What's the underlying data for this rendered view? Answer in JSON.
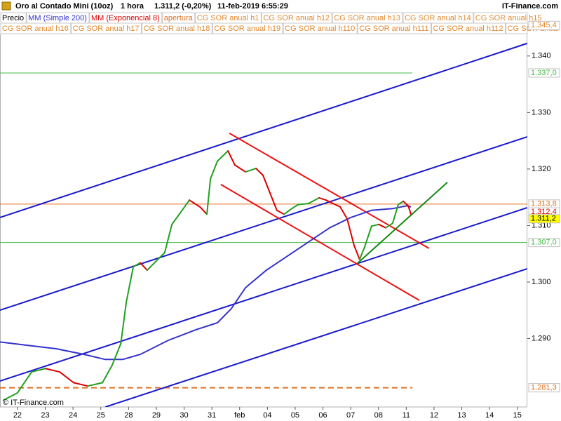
{
  "header": {
    "instrument": "Oro al Contado Mini (10oz)",
    "period": "1 hora",
    "last": "1.311,2 (-0,20%)",
    "datetime": "11-feb-2019 6:55:29",
    "brand": "IT-Finance.com",
    "watermark": "© IT-Finance.com"
  },
  "chart_data": {
    "type": "line",
    "xlim": [
      -0.63,
      18.36
    ],
    "ylim": [
      1.2779,
      1.3437
    ],
    "xticks": [
      {
        "value": 0,
        "label": "22"
      },
      {
        "value": 1,
        "label": "23"
      },
      {
        "value": 2,
        "label": "24"
      },
      {
        "value": 3,
        "label": "25"
      },
      {
        "value": 4,
        "label": "28"
      },
      {
        "value": 5,
        "label": "29"
      },
      {
        "value": 6,
        "label": "30"
      },
      {
        "value": 7,
        "label": "31"
      },
      {
        "value": 8,
        "label": "feb"
      },
      {
        "value": 9,
        "label": "04"
      },
      {
        "value": 10,
        "label": "05"
      },
      {
        "value": 11,
        "label": "06"
      },
      {
        "value": 12,
        "label": "07"
      },
      {
        "value": 13,
        "label": "08"
      },
      {
        "value": 14,
        "label": "11"
      },
      {
        "value": 15,
        "label": "12"
      },
      {
        "value": 16,
        "label": "13"
      },
      {
        "value": 17,
        "label": "14"
      },
      {
        "value": 18,
        "label": "15"
      }
    ],
    "yticks": [
      {
        "value": 1.29,
        "label": "1.290"
      },
      {
        "value": 1.3,
        "label": "1.300"
      },
      {
        "value": 1.31,
        "label": "1.310"
      },
      {
        "value": 1.32,
        "label": "1.320"
      },
      {
        "value": 1.33,
        "label": "1.330"
      },
      {
        "value": 1.34,
        "label": "1.340"
      }
    ],
    "legend_pre": [
      {
        "name": "Precio",
        "color": "#000000"
      }
    ],
    "series": [
      {
        "name": "MM (Simple 200)",
        "color": "#3333cc",
        "x": [
          -0.63,
          0.38,
          1.39,
          2.4,
          3.16,
          3.79,
          4.42,
          5.43,
          6.44,
          7.2,
          7.7,
          8.21,
          8.96,
          9.72,
          10.48,
          11.24,
          11.99,
          12.75,
          13.51,
          14.02,
          14.17
        ],
        "values": [
          1.2894,
          1.2888,
          1.2882,
          1.2872,
          1.2863,
          1.2863,
          1.2872,
          1.2897,
          1.2916,
          1.2928,
          1.2953,
          1.299,
          1.3021,
          1.3046,
          1.3071,
          1.3096,
          1.3114,
          1.3127,
          1.313,
          1.3135,
          1.3133
        ]
      },
      {
        "name": "MM (Exponencial 8)",
        "color": "#dd0000",
        "up_color": "#22a022",
        "x": [
          -0.51,
          0,
          0.51,
          1.01,
          1.52,
          2.02,
          2.53,
          3.06,
          3.41,
          3.72,
          3.92,
          4.17,
          4.42,
          4.67,
          5.05,
          5.3,
          5.56,
          5.93,
          6.19,
          6.57,
          6.82,
          6.95,
          7.2,
          7.58,
          7.83,
          8.21,
          8.59,
          8.84,
          9.09,
          9.34,
          9.6,
          9.85,
          10.1,
          10.48,
          10.86,
          11.11,
          11.36,
          11.62,
          11.87,
          12.12,
          12.32,
          12.5,
          12.75,
          13.01,
          13.26,
          13.51,
          13.71,
          13.89,
          14.07,
          14.17
        ],
        "values": [
          1.2791,
          1.2804,
          1.2841,
          1.2847,
          1.2841,
          1.2822,
          1.2816,
          1.2822,
          1.2853,
          1.2891,
          1.2965,
          1.3027,
          1.3034,
          1.3021,
          1.304,
          1.3052,
          1.3102,
          1.3127,
          1.3145,
          1.3133,
          1.312,
          1.3183,
          1.3214,
          1.3232,
          1.3207,
          1.3195,
          1.3201,
          1.3189,
          1.3158,
          1.3127,
          1.312,
          1.3129,
          1.3137,
          1.3139,
          1.3149,
          1.3145,
          1.3139,
          1.3133,
          1.3112,
          1.3065,
          1.304,
          1.3062,
          1.3099,
          1.3102,
          1.3096,
          1.3104,
          1.3137,
          1.3143,
          1.3135,
          1.312
        ]
      }
    ],
    "legend_post": [
      {
        "name": "apertura",
        "color": "#e07020"
      },
      {
        "name": "CG SOR anual h1",
        "color": "#e08a30"
      },
      {
        "name": "CG SOR anual h12",
        "color": "#e08a30"
      },
      {
        "name": "CG SOR anual h13",
        "color": "#e08a30"
      },
      {
        "name": "CG SOR anual h14",
        "color": "#e08a30"
      },
      {
        "name": "CG SOR anual h15",
        "color": "#e08a30"
      }
    ],
    "legend_row2": [
      {
        "name": "CG SOR anual h16",
        "color": "#e08a30"
      },
      {
        "name": "CG SOR anual h17",
        "color": "#e08a30"
      },
      {
        "name": "CG SOR anual h18",
        "color": "#e08a30"
      },
      {
        "name": "CG SOR anual h19",
        "color": "#e08a30"
      },
      {
        "name": "CG SOR anual h110",
        "color": "#e08a30"
      },
      {
        "name": "CG SOR anual h111",
        "color": "#e08a30"
      },
      {
        "name": "CG SOR anual h112",
        "color": "#e08a30"
      },
      {
        "name": "CG SOR anual",
        "color": "#e08a30"
      }
    ],
    "trendlines": [
      {
        "color": "#1a1acc",
        "x": [
          -0.63,
          18.36
        ],
        "y": [
          1.31143,
          1.34224
        ]
      },
      {
        "color": "#1a1acc",
        "x": [
          -0.63,
          18.36
        ],
        "y": [
          1.29503,
          1.32571
        ]
      },
      {
        "color": "#1a1acc",
        "x": [
          -0.63,
          18.36
        ],
        "y": [
          1.28248,
          1.31317
        ]
      },
      {
        "color": "#1a1acc",
        "x": [
          3.16,
          18.36
        ],
        "y": [
          1.27789,
          1.30236
        ]
      },
      {
        "color": "#ee1111",
        "x": [
          7.63,
          14.82
        ],
        "y": [
          1.32634,
          1.30596
        ]
      },
      {
        "color": "#ee1111",
        "x": [
          7.32,
          14.47
        ],
        "y": [
          1.31727,
          1.29677
        ]
      },
      {
        "color": "#118811",
        "x": [
          12.25,
          15.48
        ],
        "y": [
          1.30335,
          1.31764
        ]
      }
    ],
    "levels": [
      {
        "value": 1.3454,
        "label": "1.345,4",
        "color": "#e08a30",
        "fill": "#ffffff",
        "line": "none"
      },
      {
        "value": 1.337,
        "label": "1.337,0",
        "color": "#44bb44",
        "fill": "#ffffff",
        "line": "solid",
        "x_end": 14.22
      },
      {
        "value": 1.3138,
        "label": "1.313,8",
        "color": "#e07020",
        "fill": "#ffffff",
        "line": "solid"
      },
      {
        "value": 1.3124,
        "label": "1.312,4",
        "color": "#dd0000",
        "fill": "#ffffff",
        "line": "none"
      },
      {
        "value": 1.3112,
        "label": "1.311,2",
        "color": "#000000",
        "fill": "#ffff00",
        "line": "none"
      },
      {
        "value": 1.307,
        "label": "1.307,0",
        "color": "#44bb44",
        "fill": "#ffffff",
        "line": "solid"
      },
      {
        "value": 1.2813,
        "label": "1.281,3",
        "color": "#e07020",
        "fill": "#ffffff",
        "line": "dashed",
        "x_end": 14.22
      }
    ]
  }
}
